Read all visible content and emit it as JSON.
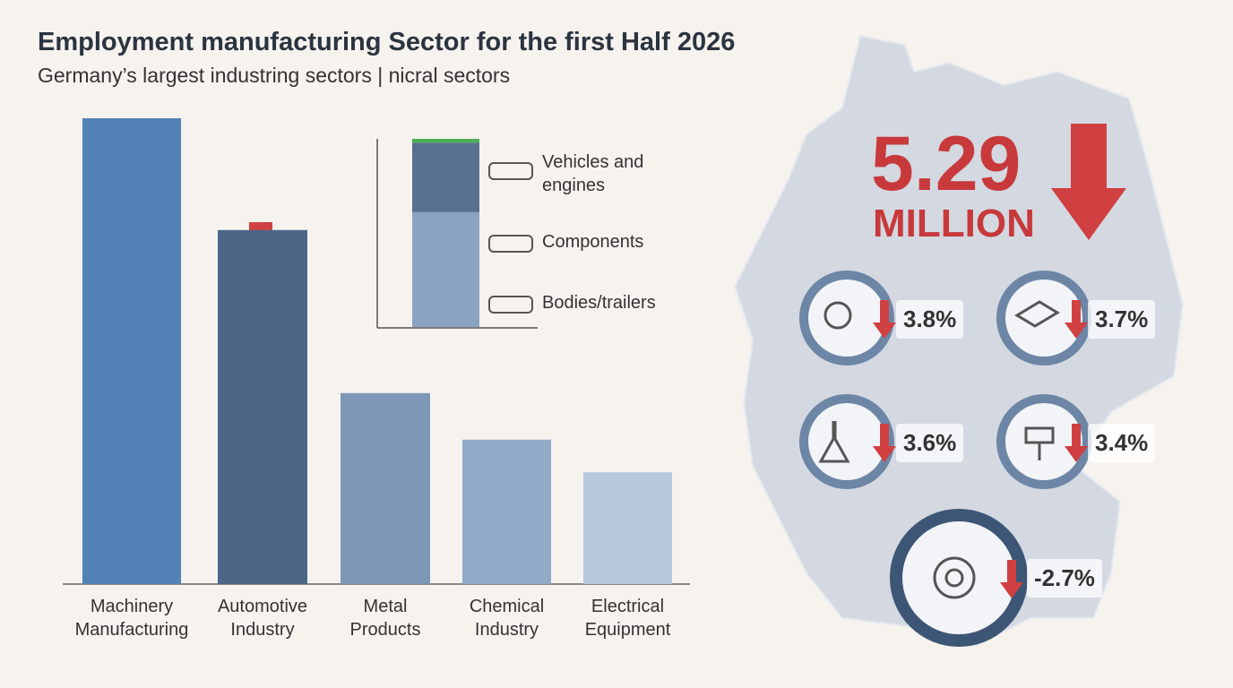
{
  "title": "Employment manufacturing Sector for the first Half 2026",
  "subtitle": "Germany’s largest industring sectors | nicral sectors",
  "chart_data": [
    {
      "type": "bar",
      "categories": [
        "Machinery Manufacturing",
        "Automotive Industry",
        "Metal Products",
        "Chemical Industry",
        "Electrical Equipment"
      ],
      "values": [
        100,
        76,
        41,
        31,
        24
      ],
      "colors": [
        "#5282b6",
        "#4b6687",
        "#7d97b7",
        "#92a9c7",
        "#b7c7dc"
      ]
    },
    {
      "type": "stacked-bar",
      "series": [
        {
          "name": "Vehicles and engines",
          "color": "#8aa3c2",
          "values": [
            61
          ]
        },
        {
          "name": "Components",
          "color": "#56708f",
          "values": [
            37
          ]
        },
        {
          "name": "Bodies/trailers",
          "color": "#4caf50",
          "values": [
            2
          ]
        }
      ]
    }
  ],
  "headline": {
    "number": "5.29",
    "unit": "MILLION"
  },
  "changes": [
    "3.8%",
    "3.7%",
    "3.6%",
    "3.4%",
    "-2.7%"
  ]
}
